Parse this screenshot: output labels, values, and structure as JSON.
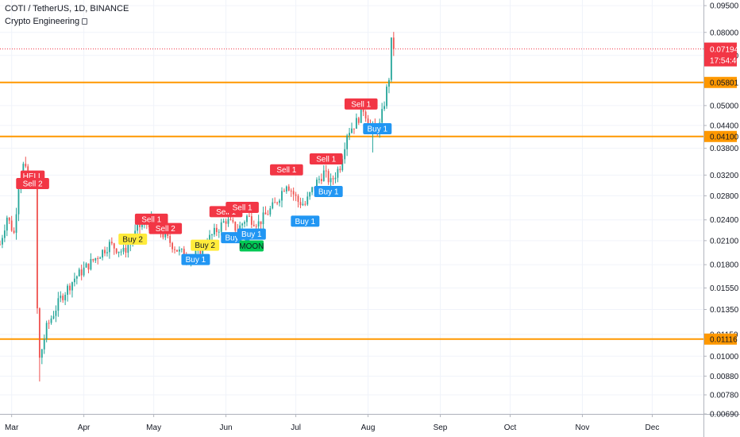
{
  "header": {
    "title": "COTI / TetherUS, 1D, BINANCE",
    "indicator": "Crypto Engineering"
  },
  "price_axis": {
    "current_price": "0.07194",
    "countdown": "17:54:40"
  },
  "colors": {
    "up": "#26a69a",
    "down": "#ef5350",
    "level_line": "#ff9800",
    "sell_label": "#f23645",
    "buy_label": "#2196f3",
    "yellow_label": "#ffeb3b",
    "moon_label": "#00c853"
  },
  "chart_data": {
    "type": "candlestick",
    "title": "COTI / TetherUS, 1D, BINANCE",
    "y_scale": "log",
    "ylim": [
      0.0069,
      0.0985
    ],
    "yticks": [
      "0.09500",
      "0.08000",
      "0.06900",
      "0.05000",
      "0.04400",
      "0.03800",
      "0.03200",
      "0.02800",
      "0.02400",
      "0.02100",
      "0.01800",
      "0.01550",
      "0.01350",
      "0.01150",
      "0.01000",
      "0.00880",
      "0.00780",
      "0.00690"
    ],
    "x_start": "2020-02-25",
    "x_end": "2020-12-23",
    "xticks": [
      {
        "date": "2020-03-01",
        "label": "Mar"
      },
      {
        "date": "2020-04-01",
        "label": "Apr"
      },
      {
        "date": "2020-05-01",
        "label": "May"
      },
      {
        "date": "2020-06-01",
        "label": "Jun"
      },
      {
        "date": "2020-07-01",
        "label": "Jul"
      },
      {
        "date": "2020-08-01",
        "label": "Aug"
      },
      {
        "date": "2020-09-01",
        "label": "Sep"
      },
      {
        "date": "2020-10-01",
        "label": "Oct"
      },
      {
        "date": "2020-11-01",
        "label": "Nov"
      },
      {
        "date": "2020-12-01",
        "label": "Dec"
      }
    ],
    "grid": true,
    "horizontal_levels": [
      {
        "value": 0.05801,
        "label": "0.05801"
      },
      {
        "value": 0.041,
        "label": "0.04100"
      },
      {
        "value": 0.01116,
        "label": "0.01116"
      }
    ],
    "current_price": 0.07194,
    "signals": [
      {
        "date": "2020-03-10",
        "price": 0.0318,
        "text": "HELL",
        "type": "sell"
      },
      {
        "date": "2020-03-10",
        "price": 0.0303,
        "text": "Sell 2",
        "type": "sell"
      },
      {
        "date": "2020-04-22",
        "price": 0.0212,
        "text": "Buy 2",
        "type": "yellow"
      },
      {
        "date": "2020-04-30",
        "price": 0.0241,
        "text": "Sell 1",
        "type": "sell"
      },
      {
        "date": "2020-05-06",
        "price": 0.0227,
        "text": "Sell 2",
        "type": "sell"
      },
      {
        "date": "2020-05-19",
        "price": 0.0186,
        "text": "Buy 1",
        "type": "buy"
      },
      {
        "date": "2020-05-23",
        "price": 0.0204,
        "text": "Buy 2",
        "type": "yellow"
      },
      {
        "date": "2020-06-01",
        "price": 0.0253,
        "text": "Sell 1",
        "type": "sell"
      },
      {
        "date": "2020-06-05",
        "price": 0.0214,
        "text": "Buy 1",
        "type": "buy"
      },
      {
        "date": "2020-06-08",
        "price": 0.026,
        "text": "Sell 1",
        "type": "sell"
      },
      {
        "date": "2020-06-12",
        "price": 0.0203,
        "text": "MOON",
        "type": "moon"
      },
      {
        "date": "2020-06-12",
        "price": 0.0219,
        "text": "Buy 1",
        "type": "buy"
      },
      {
        "date": "2020-06-27",
        "price": 0.0331,
        "text": "Sell 1",
        "type": "sell"
      },
      {
        "date": "2020-07-05",
        "price": 0.0238,
        "text": "Buy 1",
        "type": "buy"
      },
      {
        "date": "2020-07-14",
        "price": 0.0355,
        "text": "Sell 1",
        "type": "sell"
      },
      {
        "date": "2020-07-15",
        "price": 0.0288,
        "text": "Buy 1",
        "type": "buy"
      },
      {
        "date": "2020-07-29",
        "price": 0.0505,
        "text": "Sell 1",
        "type": "sell"
      },
      {
        "date": "2020-08-05",
        "price": 0.0431,
        "text": "Buy 1",
        "type": "buy"
      }
    ]
  }
}
